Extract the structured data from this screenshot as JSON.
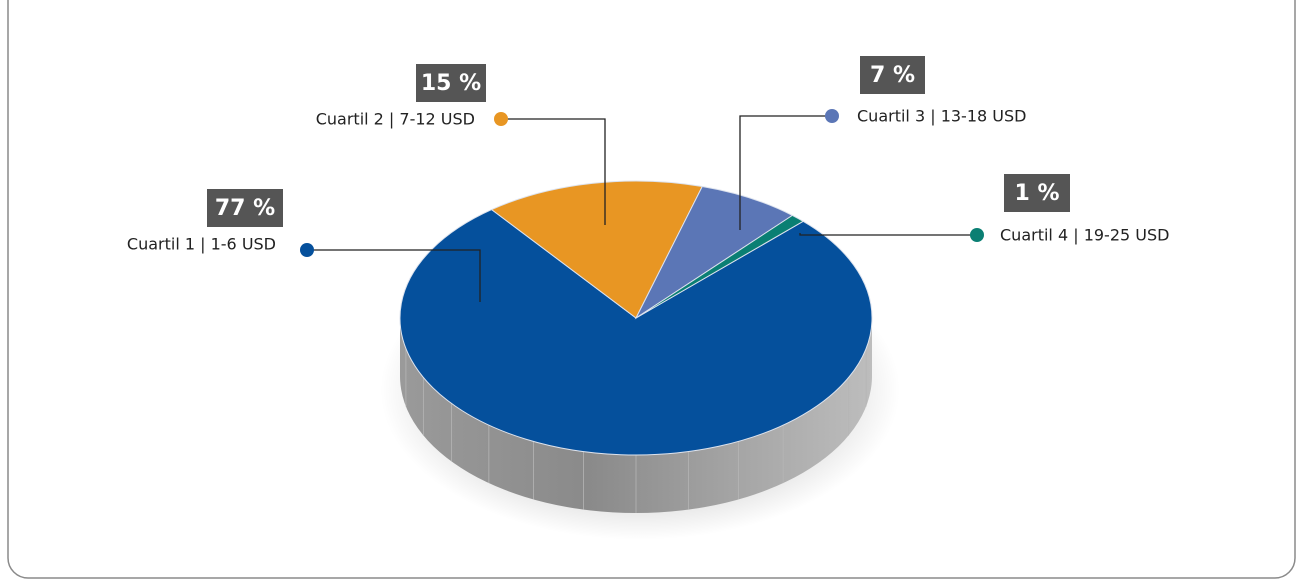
{
  "chart_data": {
    "type": "pie",
    "categories": [
      "Cuartil 1 | 1-6 USD",
      "Cuartil 2 | 7-12 USD",
      "Cuartil 3 | 13-18 USD",
      "Cuartil 4 | 19-25 USD"
    ],
    "values": [
      77,
      15,
      7,
      1
    ],
    "value_labels": [
      "77 %",
      "15 %",
      "7 %",
      "1 %"
    ],
    "colors": [
      "#05509c",
      "#e89623",
      "#5b76b6",
      "#0a7f73"
    ]
  }
}
